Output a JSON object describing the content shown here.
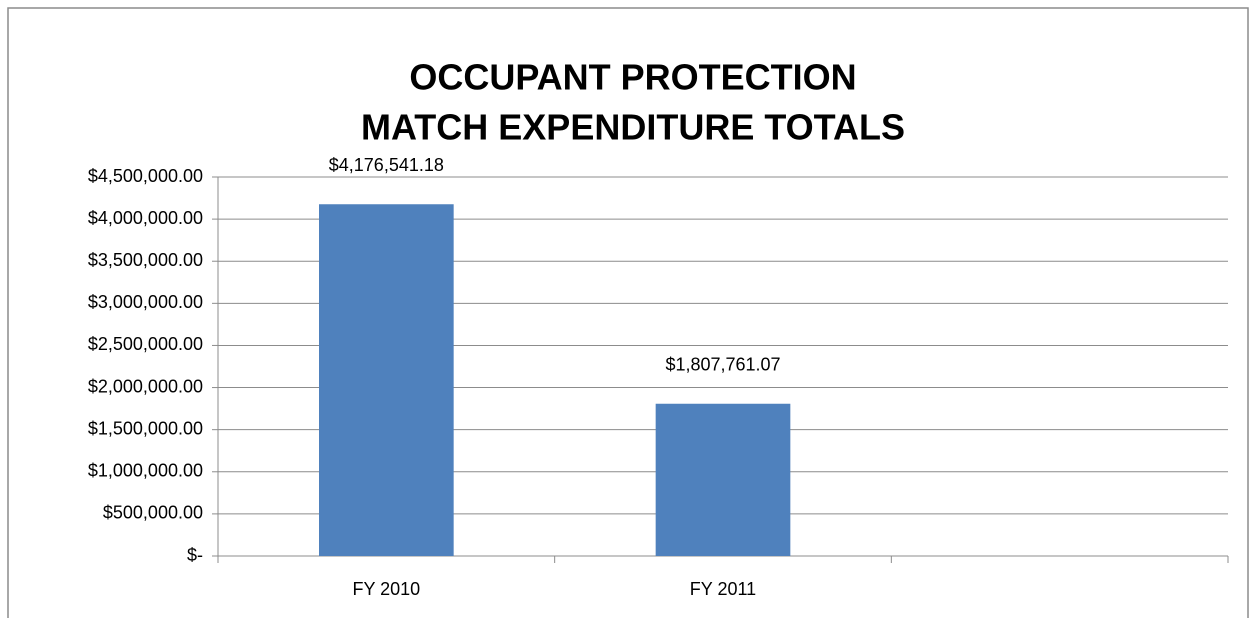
{
  "chart_data": {
    "type": "bar",
    "title": [
      "OCCUPANT PROTECTION",
      "MATCH EXPENDITURE TOTALS"
    ],
    "categories": [
      "FY 2010",
      "FY 2011",
      null
    ],
    "values": [
      4176541.18,
      1807761.07,
      null
    ],
    "value_labels": [
      "$4,176,541.18",
      "$1,807,761.07",
      null
    ],
    "color": "#4f81bd",
    "ylim": [
      0,
      4500000
    ],
    "yticks": [
      {
        "value": 0,
        "label": "$-"
      },
      {
        "value": 500000,
        "label": "$500,000.00"
      },
      {
        "value": 1000000,
        "label": "$1,000,000.00"
      },
      {
        "value": 1500000,
        "label": "$1,500,000.00"
      },
      {
        "value": 2000000,
        "label": "$2,000,000.00"
      },
      {
        "value": 2500000,
        "label": "$2,500,000.00"
      },
      {
        "value": 3000000,
        "label": "$3,000,000.00"
      },
      {
        "value": 3500000,
        "label": "$3,500,000.00"
      },
      {
        "value": 4000000,
        "label": "$4,000,000.00"
      },
      {
        "value": 4500000,
        "label": "$4,500,000.00"
      }
    ],
    "grid": true
  }
}
